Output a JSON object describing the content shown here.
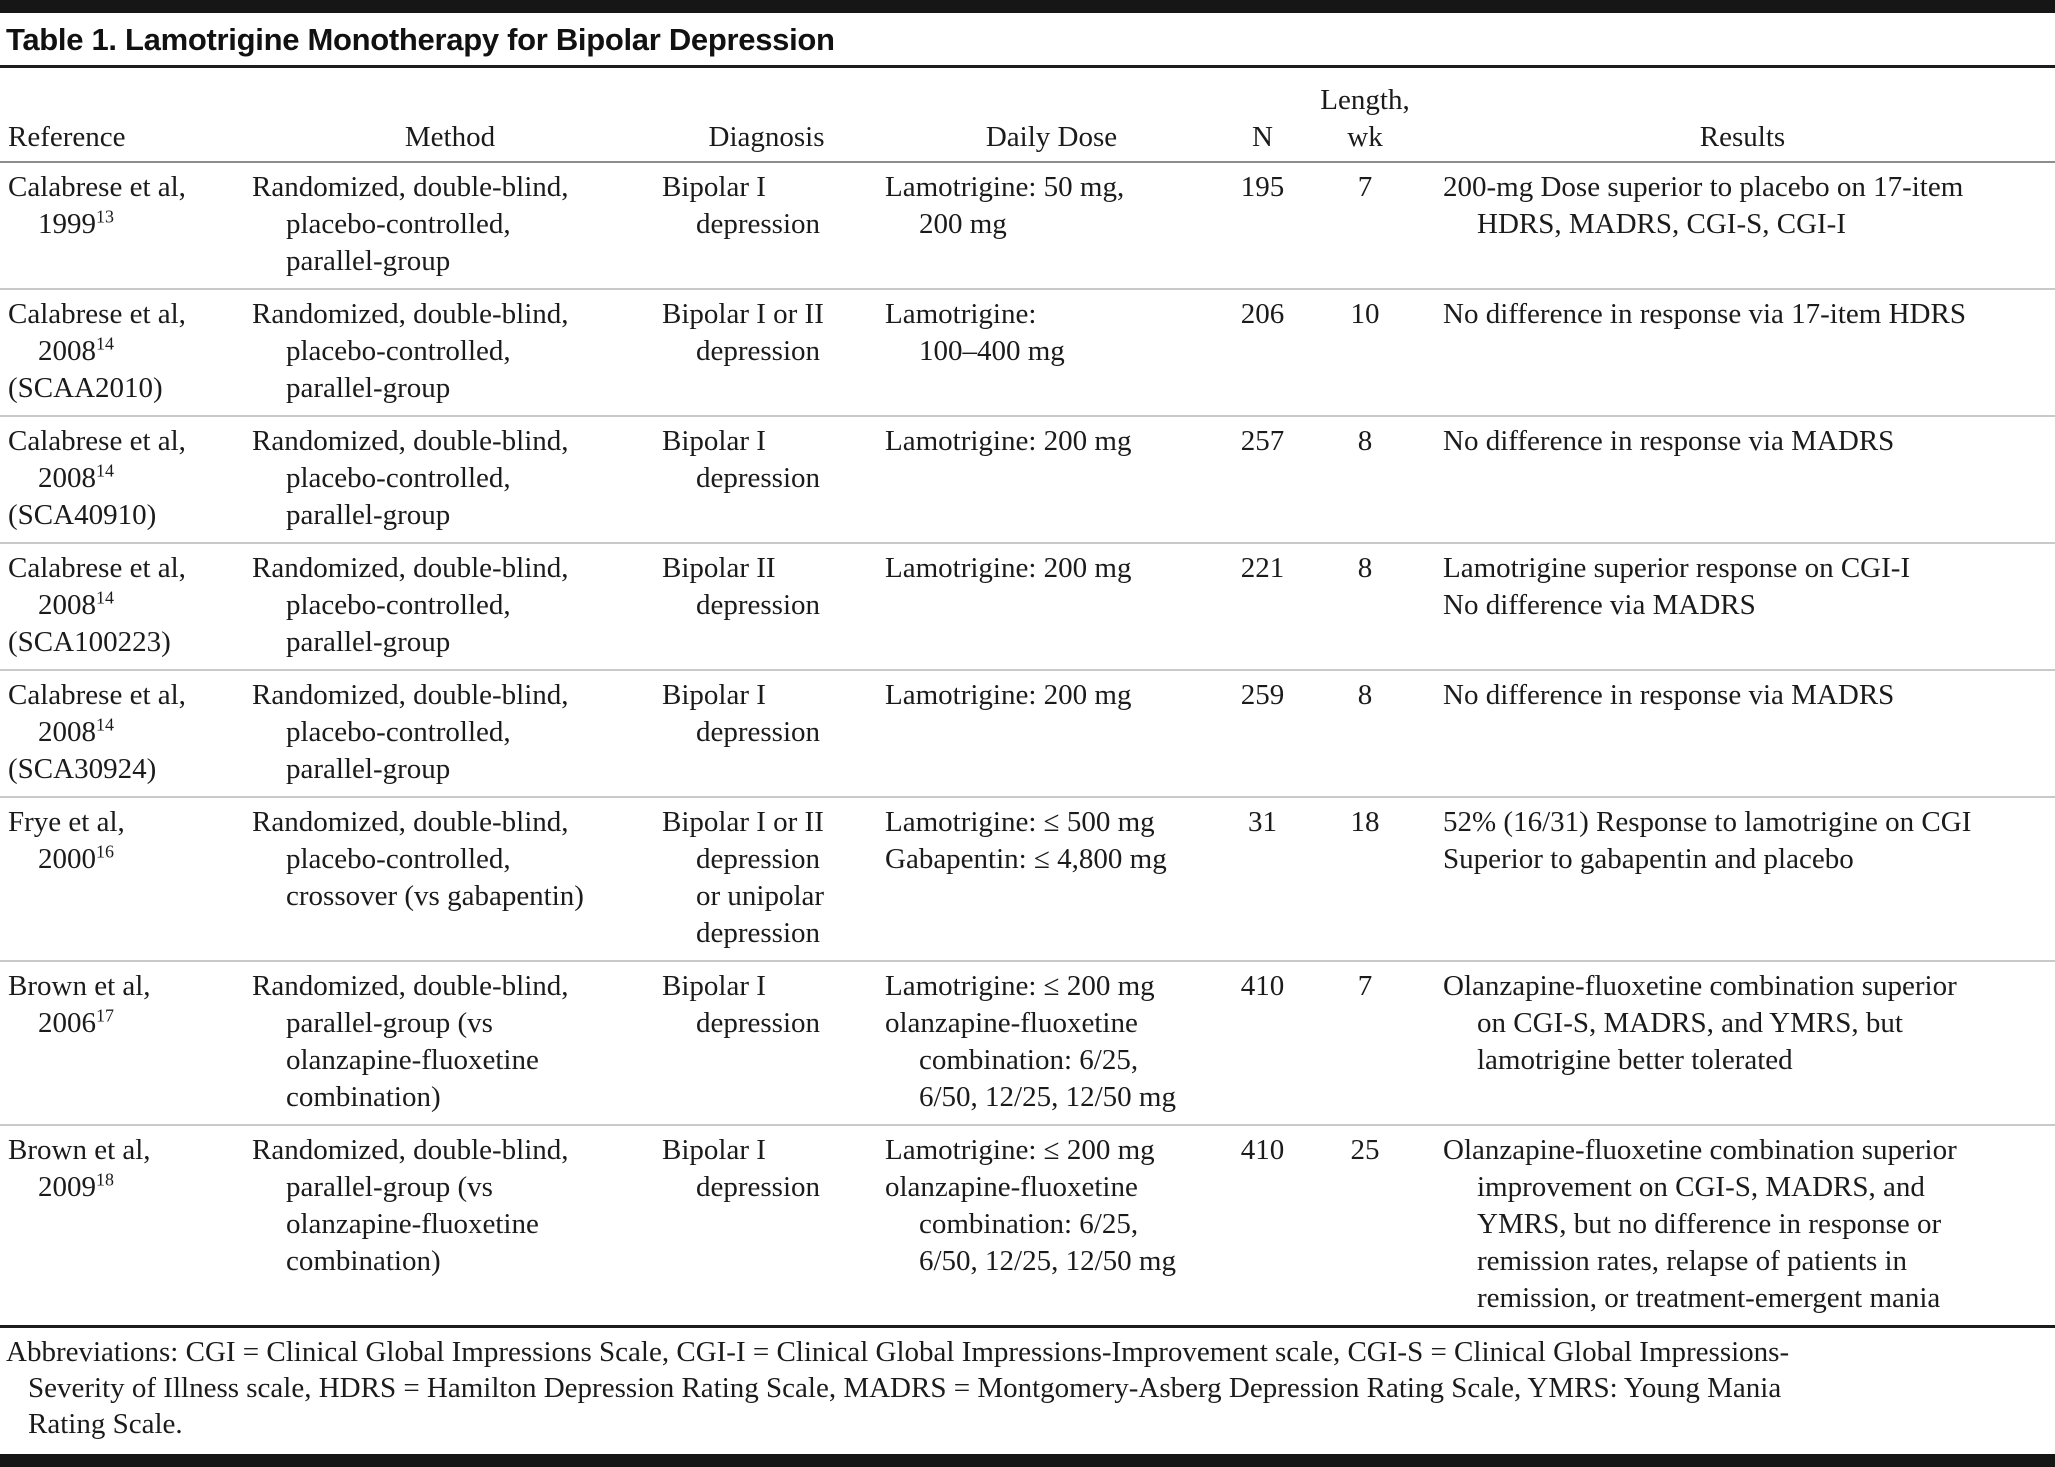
{
  "title": "Table 1. Lamotrigine Monotherapy for Bipolar Depression",
  "columns": {
    "reference": "Reference",
    "method": "Method",
    "diagnosis": "Diagnosis",
    "daily_dose": "Daily Dose",
    "n": "N",
    "length_wk": "Length,\nwk",
    "results": "Results"
  },
  "rows": [
    {
      "reference": [
        {
          "t": "Calabrese et al,"
        },
        {
          "t": "1999",
          "sup": "13",
          "i": true
        }
      ],
      "method": [
        {
          "t": "Randomized, double-blind,"
        },
        {
          "t": "placebo-controlled,",
          "i": true
        },
        {
          "t": "parallel-group",
          "i": true
        }
      ],
      "diagnosis": [
        {
          "t": "Bipolar I"
        },
        {
          "t": "depression",
          "i": true
        }
      ],
      "daily_dose": [
        {
          "t": "Lamotrigine: 50 mg,"
        },
        {
          "t": "200 mg",
          "i": true
        }
      ],
      "n": "195",
      "length_wk": "7",
      "results": [
        {
          "t": "200-mg Dose superior to placebo on 17-item"
        },
        {
          "t": "HDRS, MADRS, CGI-S, CGI-I",
          "i": true
        }
      ]
    },
    {
      "reference": [
        {
          "t": "Calabrese et al,"
        },
        {
          "t": "2008",
          "sup": "14",
          "i": true
        },
        {
          "t": "(SCAA2010)"
        }
      ],
      "method": [
        {
          "t": "Randomized, double-blind,"
        },
        {
          "t": "placebo-controlled,",
          "i": true
        },
        {
          "t": "parallel-group",
          "i": true
        }
      ],
      "diagnosis": [
        {
          "t": "Bipolar I or II"
        },
        {
          "t": "depression",
          "i": true
        }
      ],
      "daily_dose": [
        {
          "t": "Lamotrigine:"
        },
        {
          "t": "100–400 mg",
          "i": true
        }
      ],
      "n": "206",
      "length_wk": "10",
      "results": [
        {
          "t": "No difference in response via 17-item HDRS"
        }
      ]
    },
    {
      "reference": [
        {
          "t": "Calabrese et al,"
        },
        {
          "t": "2008",
          "sup": "14",
          "i": true
        },
        {
          "t": "(SCA40910)"
        }
      ],
      "method": [
        {
          "t": "Randomized, double-blind,"
        },
        {
          "t": "placebo-controlled,",
          "i": true
        },
        {
          "t": "parallel-group",
          "i": true
        }
      ],
      "diagnosis": [
        {
          "t": "Bipolar I"
        },
        {
          "t": "depression",
          "i": true
        }
      ],
      "daily_dose": [
        {
          "t": "Lamotrigine: 200 mg"
        }
      ],
      "n": "257",
      "length_wk": "8",
      "results": [
        {
          "t": "No difference in response via MADRS"
        }
      ]
    },
    {
      "reference": [
        {
          "t": "Calabrese et al,"
        },
        {
          "t": "2008",
          "sup": "14",
          "i": true
        },
        {
          "t": "(SCA100223)"
        }
      ],
      "method": [
        {
          "t": "Randomized, double-blind,"
        },
        {
          "t": "placebo-controlled,",
          "i": true
        },
        {
          "t": "parallel-group",
          "i": true
        }
      ],
      "diagnosis": [
        {
          "t": "Bipolar II"
        },
        {
          "t": "depression",
          "i": true
        }
      ],
      "daily_dose": [
        {
          "t": "Lamotrigine: 200 mg"
        }
      ],
      "n": "221",
      "length_wk": "8",
      "results": [
        {
          "t": "Lamotrigine superior response on CGI-I"
        },
        {
          "t": "No difference via MADRS"
        }
      ]
    },
    {
      "reference": [
        {
          "t": "Calabrese et al,"
        },
        {
          "t": "2008",
          "sup": "14",
          "i": true
        },
        {
          "t": "(SCA30924)"
        }
      ],
      "method": [
        {
          "t": "Randomized, double-blind,"
        },
        {
          "t": "placebo-controlled,",
          "i": true
        },
        {
          "t": "parallel-group",
          "i": true
        }
      ],
      "diagnosis": [
        {
          "t": "Bipolar I"
        },
        {
          "t": "depression",
          "i": true
        }
      ],
      "daily_dose": [
        {
          "t": "Lamotrigine: 200 mg"
        }
      ],
      "n": "259",
      "length_wk": "8",
      "results": [
        {
          "t": "No difference in response via MADRS"
        }
      ]
    },
    {
      "reference": [
        {
          "t": "Frye et al,"
        },
        {
          "t": "2000",
          "sup": "16",
          "i": true
        }
      ],
      "method": [
        {
          "t": "Randomized, double-blind,"
        },
        {
          "t": "placebo-controlled,",
          "i": true
        },
        {
          "t": "crossover (vs gabapentin)",
          "i": true
        }
      ],
      "diagnosis": [
        {
          "t": "Bipolar I or II"
        },
        {
          "t": "depression",
          "i": true
        },
        {
          "t": "or unipolar",
          "i": true
        },
        {
          "t": "depression",
          "i": true
        }
      ],
      "daily_dose": [
        {
          "t": "Lamotrigine: ≤ 500 mg"
        },
        {
          "t": "Gabapentin: ≤ 4,800 mg"
        }
      ],
      "n": "31",
      "length_wk": "18",
      "results": [
        {
          "t": "52% (16/31) Response to lamotrigine on CGI"
        },
        {
          "t": "Superior to gabapentin and placebo"
        }
      ]
    },
    {
      "reference": [
        {
          "t": "Brown et al,"
        },
        {
          "t": "2006",
          "sup": "17",
          "i": true
        }
      ],
      "method": [
        {
          "t": "Randomized, double-blind,"
        },
        {
          "t": "parallel-group (vs",
          "i": true
        },
        {
          "t": "olanzapine-fluoxetine",
          "i": true
        },
        {
          "t": "combination)",
          "i": true
        }
      ],
      "diagnosis": [
        {
          "t": "Bipolar I"
        },
        {
          "t": "depression",
          "i": true
        }
      ],
      "daily_dose": [
        {
          "t": "Lamotrigine: ≤ 200 mg"
        },
        {
          "t": "olanzapine-fluoxetine"
        },
        {
          "t": "combination: 6/25,",
          "i": true
        },
        {
          "t": "6/50, 12/25, 12/50 mg",
          "i": true
        }
      ],
      "n": "410",
      "length_wk": "7",
      "results": [
        {
          "t": "Olanzapine-fluoxetine combination superior"
        },
        {
          "t": "on CGI-S, MADRS, and YMRS, but",
          "i": true
        },
        {
          "t": "lamotrigine better tolerated",
          "i": true
        }
      ]
    },
    {
      "reference": [
        {
          "t": "Brown et al,"
        },
        {
          "t": "2009",
          "sup": "18",
          "i": true
        }
      ],
      "method": [
        {
          "t": "Randomized, double-blind,"
        },
        {
          "t": "parallel-group (vs",
          "i": true
        },
        {
          "t": "olanzapine-fluoxetine",
          "i": true
        },
        {
          "t": "combination)",
          "i": true
        }
      ],
      "diagnosis": [
        {
          "t": "Bipolar I"
        },
        {
          "t": "depression",
          "i": true
        }
      ],
      "daily_dose": [
        {
          "t": "Lamotrigine: ≤ 200 mg"
        },
        {
          "t": "olanzapine-fluoxetine"
        },
        {
          "t": "combination: 6/25,",
          "i": true
        },
        {
          "t": "6/50, 12/25, 12/50 mg",
          "i": true
        }
      ],
      "n": "410",
      "length_wk": "25",
      "results": [
        {
          "t": "Olanzapine-fluoxetine combination superior"
        },
        {
          "t": "improvement on CGI-S, MADRS, and",
          "i": true
        },
        {
          "t": "YMRS, but no difference in response or",
          "i": true
        },
        {
          "t": "remission rates, relapse of patients in",
          "i": true
        },
        {
          "t": "remission, or treatment-emergent mania",
          "i": true
        }
      ]
    }
  ],
  "footnote": [
    "Abbreviations: CGI = Clinical Global Impressions Scale, CGI-I = Clinical Global Impressions-Improvement scale, CGI-S = Clinical Global Impressions-",
    "Severity of Illness scale, HDRS = Hamilton Depression Rating Scale, MADRS = Montgomery-Asberg Depression Rating Scale, YMRS: Young Mania",
    "Rating Scale."
  ],
  "colors": {
    "text": "#1b1b1b",
    "heavy_rule": "#1d1d1d",
    "light_rule": "#c9c9c9",
    "background": "#ffffff"
  }
}
